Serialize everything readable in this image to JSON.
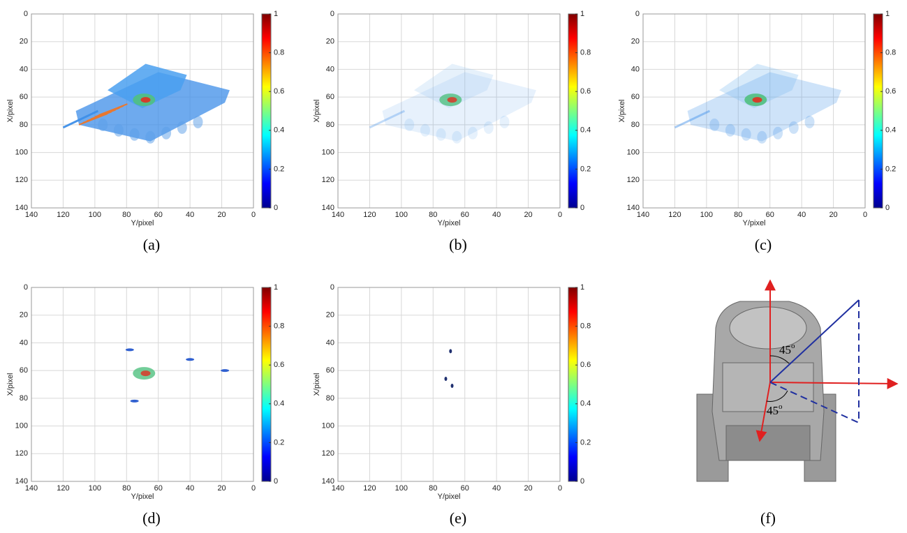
{
  "axes": {
    "xlabel": "Y/pixel",
    "ylabel": "X/pixel",
    "xticks": [
      140,
      120,
      100,
      80,
      60,
      40,
      20,
      0
    ],
    "yticks": [
      0,
      20,
      40,
      60,
      80,
      100,
      120,
      140
    ],
    "colorbar_ticks": [
      0,
      0.2,
      0.4,
      0.6,
      0.8,
      1
    ]
  },
  "panels": [
    {
      "label": "(a)"
    },
    {
      "label": "(b)"
    },
    {
      "label": "(c)"
    },
    {
      "label": "(d)"
    },
    {
      "label": "(e)"
    }
  ],
  "diagram": {
    "label": "(f)",
    "angles": [
      {
        "value": "45",
        "sup": "o"
      },
      {
        "value": "45",
        "sup": "o"
      }
    ]
  }
}
